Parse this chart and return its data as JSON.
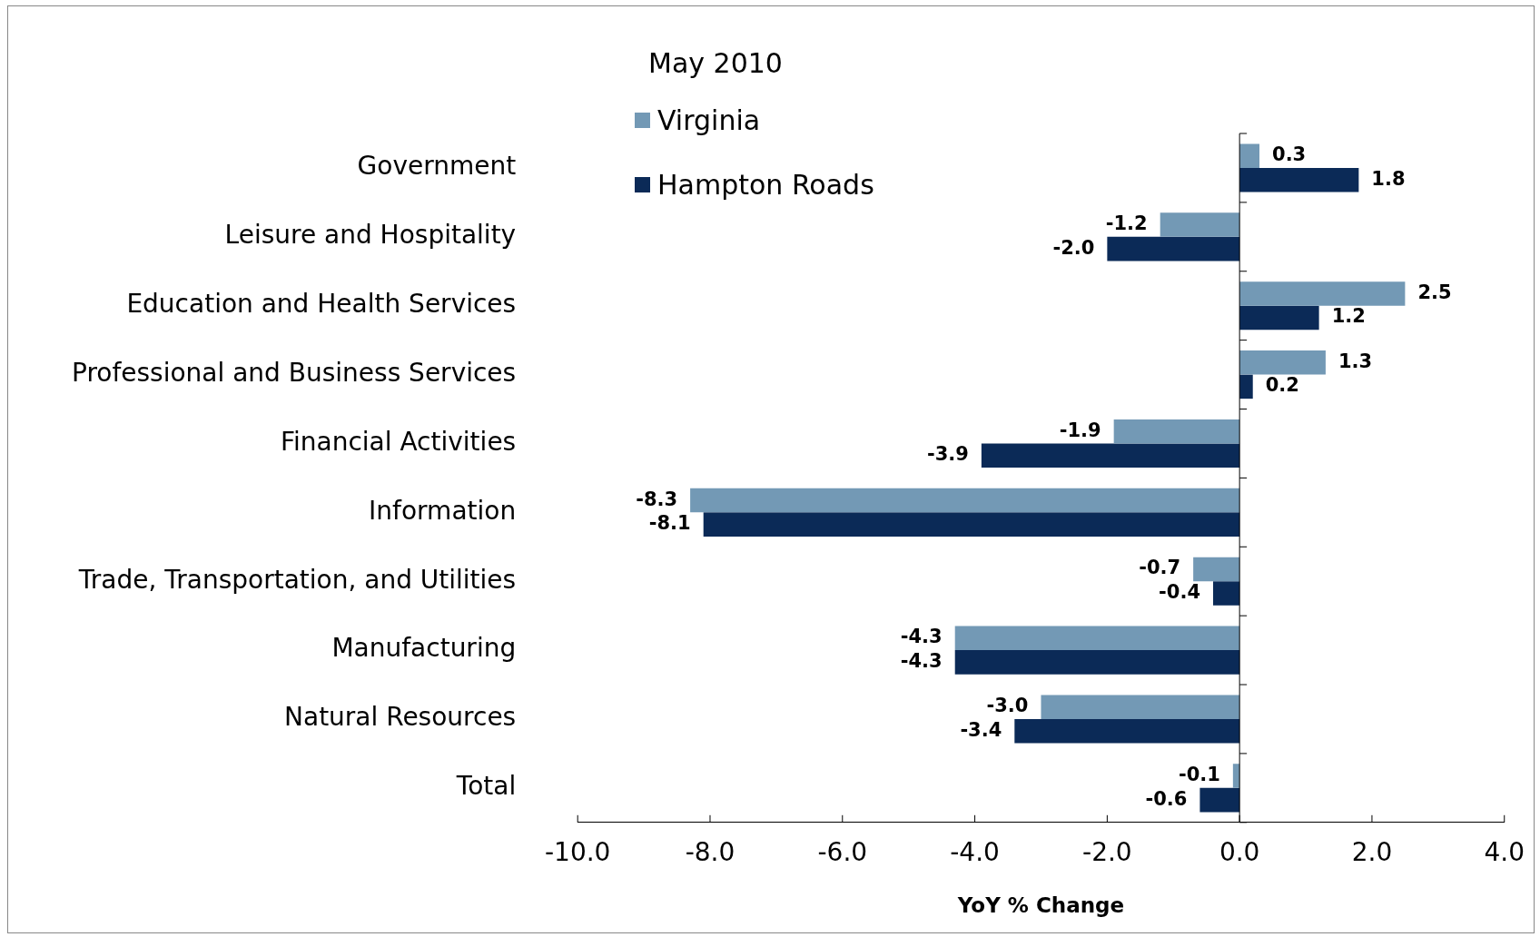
{
  "chart_data": {
    "type": "bar",
    "orientation": "horizontal",
    "title": "May 2010",
    "xlabel": "YoY % Change",
    "categories": [
      "Government",
      "Leisure and Hospitality",
      "Education and Health Services",
      "Professional and Business Services",
      "Financial Activities",
      "Information",
      "Trade, Transportation, and Utilities",
      "Manufacturing",
      "Natural Resources",
      "Total"
    ],
    "series": [
      {
        "name": "Virginia",
        "color": "#7399b5",
        "values": [
          0.3,
          -1.2,
          2.5,
          1.3,
          -1.9,
          -8.3,
          -0.7,
          -4.3,
          -3.0,
          -0.1
        ],
        "value_labels": [
          "0.3",
          "-1.2",
          "2.5",
          "1.3",
          "-1.9",
          "-8.3",
          "-0.7",
          "-4.3",
          "-3.0",
          "-0.1"
        ]
      },
      {
        "name": "Hampton Roads",
        "color": "#0b2a57",
        "values": [
          1.8,
          -2.0,
          1.2,
          0.2,
          -3.9,
          -8.1,
          -0.4,
          -4.3,
          -3.4,
          -0.6
        ],
        "value_labels": [
          "1.8",
          "-2.0",
          "1.2",
          "0.2",
          "-3.9",
          "-8.1",
          "-0.4",
          "-4.3",
          "-3.4",
          "-0.6"
        ]
      }
    ],
    "xlim": [
      -10,
      4
    ],
    "xticks": [
      {
        "value": -10,
        "label": "-10.0"
      },
      {
        "value": -8,
        "label": "-8.0"
      },
      {
        "value": -6,
        "label": "-6.0"
      },
      {
        "value": -4,
        "label": "-4.0"
      },
      {
        "value": -2,
        "label": "-2.0"
      },
      {
        "value": 0,
        "label": "0.0"
      },
      {
        "value": 2,
        "label": "2.0"
      },
      {
        "value": 4,
        "label": "4.0"
      }
    ],
    "legend": "top"
  }
}
